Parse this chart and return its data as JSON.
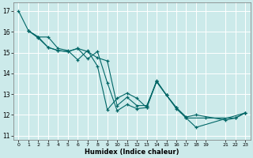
{
  "xlabel": "Humidex (Indice chaleur)",
  "bg_color": "#cceaea",
  "grid_color": "#ffffff",
  "line_color": "#006666",
  "xlim": [
    -0.5,
    23.5
  ],
  "ylim": [
    10.8,
    17.4
  ],
  "xticks": [
    0,
    1,
    2,
    3,
    4,
    5,
    6,
    7,
    8,
    9,
    10,
    11,
    12,
    13,
    14,
    15,
    16,
    17,
    18,
    19,
    21,
    22,
    23
  ],
  "yticks": [
    11,
    12,
    13,
    14,
    15,
    16,
    17
  ],
  "line1_x": [
    0,
    1,
    2,
    3,
    4,
    5,
    6,
    7,
    8,
    9,
    10,
    11,
    12,
    13,
    14,
    15,
    16,
    17,
    18,
    23
  ],
  "line1_y": [
    17.0,
    16.05,
    15.75,
    15.75,
    15.2,
    15.1,
    14.65,
    15.1,
    14.35,
    12.25,
    12.8,
    13.05,
    12.8,
    12.35,
    13.6,
    12.95,
    12.35,
    11.85,
    11.4,
    12.1
  ],
  "line2_x": [
    1,
    2,
    3,
    4,
    5,
    6,
    7,
    8,
    9,
    10,
    11,
    12,
    13,
    14,
    15,
    16,
    17,
    19,
    22,
    23
  ],
  "line2_y": [
    16.05,
    15.75,
    15.25,
    15.1,
    15.05,
    15.2,
    15.05,
    14.75,
    14.6,
    12.45,
    12.85,
    12.45,
    12.45,
    13.6,
    12.95,
    12.3,
    11.85,
    11.85,
    11.85,
    12.1
  ],
  "line3_x": [
    1,
    2,
    3,
    4,
    5,
    6,
    7,
    8,
    9,
    10,
    11,
    12,
    13,
    14,
    15,
    16,
    17,
    18,
    21,
    22,
    23
  ],
  "line3_y": [
    16.05,
    15.7,
    15.25,
    15.1,
    15.05,
    15.2,
    14.7,
    15.05,
    13.55,
    12.2,
    12.5,
    12.3,
    12.35,
    13.65,
    12.95,
    12.35,
    11.9,
    12.0,
    11.75,
    11.85,
    12.1
  ]
}
